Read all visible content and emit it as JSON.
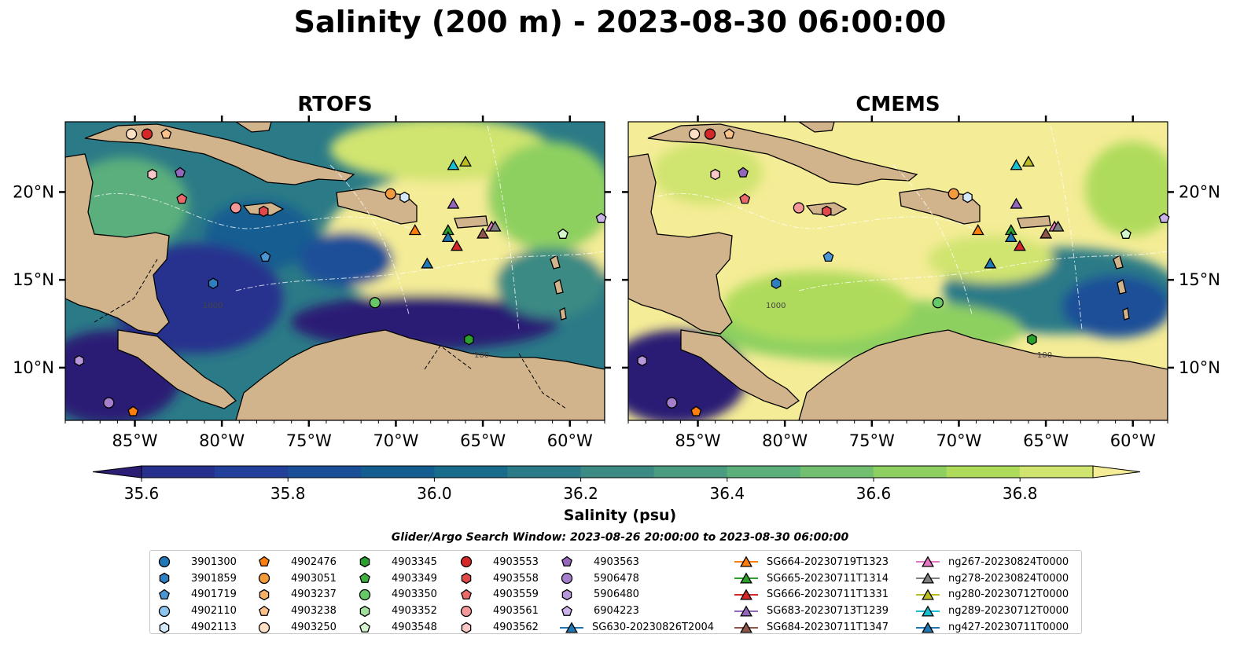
{
  "title": "Salinity (200 m) - 2023-08-30 06:00:00",
  "panels": [
    {
      "title": "RTOFS"
    },
    {
      "title": "CMEMS"
    }
  ],
  "axes": {
    "x_ticks": [
      "85°W",
      "80°W",
      "75°W",
      "70°W",
      "65°W",
      "60°W"
    ],
    "y_ticks": [
      "20°N",
      "15°N",
      "10°N"
    ],
    "contour_labels": [
      "1000",
      "100"
    ]
  },
  "colorbar": {
    "label": "Salinity (psu)",
    "ticks": [
      "35.6",
      "35.8",
      "36.0",
      "36.2",
      "36.4",
      "36.6",
      "36.8"
    ],
    "colors": [
      "#2b1e74",
      "#28308e",
      "#223f99",
      "#1a4f98",
      "#145d91",
      "#176c8c",
      "#2b7a87",
      "#3b8a84",
      "#4a9c80",
      "#5aaf7b",
      "#72c06f",
      "#8ed060",
      "#afdb5b",
      "#d0e470",
      "#f4ec96"
    ]
  },
  "legend_title": "Glider/Argo Search Window: 2023-08-26 20:00:00 to 2023-08-30 06:00:00",
  "legend": [
    [
      {
        "label": "3901300",
        "marker": "circle",
        "color": "#1f77b4"
      },
      {
        "label": "3901859",
        "marker": "hexagon",
        "color": "#2f7fc0"
      },
      {
        "label": "4901719",
        "marker": "pentagon",
        "color": "#4a95d4"
      },
      {
        "label": "4902110",
        "marker": "circle",
        "color": "#8ec4ec"
      },
      {
        "label": "4902113",
        "marker": "hexagon",
        "color": "#d4eafb"
      }
    ],
    [
      {
        "label": "4902476",
        "marker": "pentagon",
        "color": "#ff7f0e"
      },
      {
        "label": "4903051",
        "marker": "circle",
        "color": "#f39a3c"
      },
      {
        "label": "4903237",
        "marker": "hexagon",
        "color": "#f7b065"
      },
      {
        "label": "4903238",
        "marker": "pentagon",
        "color": "#fac18a"
      },
      {
        "label": "4903250",
        "marker": "circle",
        "color": "#fde0c4"
      }
    ],
    [
      {
        "label": "4903345",
        "marker": "hexagon",
        "color": "#2ca02c"
      },
      {
        "label": "4903349",
        "marker": "pentagon",
        "color": "#3fb040"
      },
      {
        "label": "4903350",
        "marker": "circle",
        "color": "#66c866"
      },
      {
        "label": "4903352",
        "marker": "hexagon",
        "color": "#9fe09a"
      },
      {
        "label": "4903548",
        "marker": "pentagon",
        "color": "#d3f5cd"
      }
    ],
    [
      {
        "label": "4903553",
        "marker": "circle",
        "color": "#d62728"
      },
      {
        "label": "4903558",
        "marker": "hexagon",
        "color": "#e0484a"
      },
      {
        "label": "4903559",
        "marker": "pentagon",
        "color": "#ea6a6c"
      },
      {
        "label": "4903561",
        "marker": "circle",
        "color": "#f29898"
      },
      {
        "label": "4903562",
        "marker": "hexagon",
        "color": "#f9c8c6"
      }
    ],
    [
      {
        "label": "4903563",
        "marker": "pentagon",
        "color": "#9467bd"
      },
      {
        "label": "5906478",
        "marker": "circle",
        "color": "#a57fcc"
      },
      {
        "label": "5906480",
        "marker": "hexagon",
        "color": "#b898da"
      },
      {
        "label": "6904223",
        "marker": "pentagon",
        "color": "#ccb2ea"
      },
      {
        "label": "SG630-20230826T2004",
        "marker": "triangle-line",
        "color": "#1f77b4"
      }
    ],
    [
      {
        "label": "SG664-20230719T1323",
        "marker": "triangle-line",
        "color": "#ff7f0e"
      },
      {
        "label": "SG665-20230711T1314",
        "marker": "triangle-line",
        "color": "#2ca02c"
      },
      {
        "label": "SG666-20230711T1331",
        "marker": "triangle-line",
        "color": "#d62728"
      },
      {
        "label": "SG683-20230713T1239",
        "marker": "triangle-line",
        "color": "#9467bd"
      },
      {
        "label": "SG684-20230711T1347",
        "marker": "triangle-line",
        "color": "#8c564b"
      }
    ],
    [
      {
        "label": "ng267-20230824T0000",
        "marker": "triangle-line",
        "color": "#e377c2"
      },
      {
        "label": "ng278-20230824T0000",
        "marker": "triangle-line",
        "color": "#7f7f7f"
      },
      {
        "label": "ng280-20230712T0000",
        "marker": "triangle-line",
        "color": "#bcbd22"
      },
      {
        "label": "ng289-20230712T0000",
        "marker": "triangle-line",
        "color": "#17becf"
      },
      {
        "label": "ng427-20230711T0000",
        "marker": "triangle-line",
        "color": "#1f77b4"
      }
    ]
  ],
  "chart_data": {
    "type": "heatmap",
    "title": "Salinity (200 m) - 2023-08-30 06:00:00",
    "variable": "Salinity (psu)",
    "colorbar_range": [
      35.55,
      36.95
    ],
    "colorbar_extend": "both",
    "xlim": [
      -89,
      -58
    ],
    "ylim": [
      7,
      24
    ],
    "panels": [
      "RTOFS",
      "CMEMS"
    ],
    "regional_values": {
      "RTOFS": {
        "Caribbean interior": 36.55,
        "Southern Caribbean": 35.65,
        "Western Caribbean": 35.9,
        "Pacific": 35.55
      },
      "CMEMS": {
        "Caribbean interior": 36.9,
        "Southern Caribbean": 36.4,
        "Western Caribbean": 36.7,
        "Pacific": 35.55
      }
    },
    "markers": [
      {
        "id": "4903250",
        "lon": -85.2,
        "lat": 23.3
      },
      {
        "id": "4903553",
        "lon": -84.3,
        "lat": 23.3
      },
      {
        "id": "4903238",
        "lon": -83.2,
        "lat": 23.3
      },
      {
        "id": "4903562",
        "lon": -84.0,
        "lat": 21.0
      },
      {
        "id": "4903563",
        "lon": -82.4,
        "lat": 21.1
      },
      {
        "id": "4903559",
        "lon": -82.3,
        "lat": 19.6
      },
      {
        "id": "4903561",
        "lon": -79.2,
        "lat": 19.1
      },
      {
        "id": "4903558",
        "lon": -77.6,
        "lat": 18.9
      },
      {
        "id": "4901719",
        "lon": -77.5,
        "lat": 16.3
      },
      {
        "id": "3901859",
        "lon": -80.5,
        "lat": 14.8
      },
      {
        "id": "4903051",
        "lon": -70.3,
        "lat": 19.9
      },
      {
        "id": "4902113",
        "lon": -69.5,
        "lat": 19.7
      },
      {
        "id": "4903350",
        "lon": -71.2,
        "lat": 13.7
      },
      {
        "id": "4903345",
        "lon": -65.8,
        "lat": 11.6
      },
      {
        "id": "4903548",
        "lon": -60.4,
        "lat": 17.6
      },
      {
        "id": "6904223",
        "lon": -58.2,
        "lat": 18.5
      },
      {
        "id": "5906480",
        "lon": -88.2,
        "lat": 10.4
      },
      {
        "id": "5906478",
        "lon": -86.5,
        "lat": 8.0
      },
      {
        "id": "4902476",
        "lon": -85.1,
        "lat": 7.5
      },
      {
        "id": "SG630-20230826T2004",
        "lon": -68.2,
        "lat": 15.9
      },
      {
        "id": "SG664-20230719T1323",
        "lon": -68.9,
        "lat": 17.8
      },
      {
        "id": "SG665-20230711T1314",
        "lon": -67.0,
        "lat": 17.8
      },
      {
        "id": "SG666-20230711T1331",
        "lon": -66.5,
        "lat": 16.9
      },
      {
        "id": "SG683-20230713T1239",
        "lon": -66.7,
        "lat": 19.3
      },
      {
        "id": "SG684-20230711T1347",
        "lon": -65.0,
        "lat": 17.6
      },
      {
        "id": "ng267-20230824T0000",
        "lon": -64.5,
        "lat": 18.0
      },
      {
        "id": "ng278-20230824T0000",
        "lon": -64.3,
        "lat": 18.0
      },
      {
        "id": "ng280-20230712T0000",
        "lon": -66.0,
        "lat": 21.7
      },
      {
        "id": "ng289-20230712T0000",
        "lon": -66.7,
        "lat": 21.5
      },
      {
        "id": "ng427-20230711T0000",
        "lon": -67.0,
        "lat": 17.4
      }
    ]
  }
}
